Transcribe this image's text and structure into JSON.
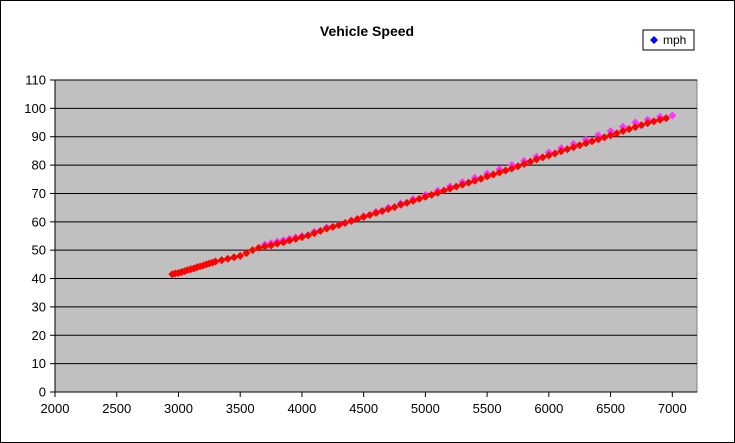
{
  "chart_data": {
    "type": "scatter",
    "title": "Vehicle Speed",
    "xlabel": "",
    "ylabel": "",
    "xlim": [
      2000,
      7200
    ],
    "ylim": [
      0,
      110
    ],
    "x_ticks": [
      2000,
      2500,
      3000,
      3500,
      4000,
      4500,
      5000,
      5500,
      6000,
      6500,
      7000
    ],
    "y_ticks": [
      0,
      10,
      20,
      30,
      40,
      50,
      60,
      70,
      80,
      90,
      100,
      110
    ],
    "grid": "horizontal",
    "plot_background": "#C0C0C0",
    "legend_position": "top-right",
    "series": [
      {
        "name": "mph",
        "legend_color": "#0000FF",
        "x": [
          3700,
          3750,
          3800,
          3850,
          3900,
          3950,
          4000,
          4100,
          4200,
          4300,
          4400,
          4500,
          4600,
          4700,
          4800,
          4900,
          5000,
          5100,
          5200,
          5300,
          5400,
          5500,
          5600,
          5700,
          5800,
          5900,
          6000,
          6100,
          6200,
          6300,
          6400,
          6500,
          6600,
          6700,
          6800,
          6900,
          7000
        ],
        "y": [
          52,
          52.5,
          53,
          53.5,
          54,
          54.5,
          55,
          56.5,
          58,
          59,
          60.5,
          62,
          63.5,
          65,
          66.5,
          68,
          69.5,
          71,
          72.5,
          74,
          75.5,
          77,
          78.5,
          80,
          81.5,
          83,
          84.5,
          86,
          87.5,
          89,
          90.5,
          92,
          93.5,
          95,
          96,
          97,
          97.5
        ],
        "color": "#FF33FF"
      },
      {
        "name": "",
        "x": [
          2950,
          2975,
          3000,
          3025,
          3050,
          3075,
          3100,
          3125,
          3150,
          3175,
          3200,
          3225,
          3250,
          3275,
          3300,
          3350,
          3400,
          3450,
          3500,
          3550,
          3600,
          3650,
          3700,
          3750,
          3800,
          3850,
          3900,
          3950,
          4000,
          4050,
          4100,
          4150,
          4200,
          4250,
          4300,
          4350,
          4400,
          4450,
          4500,
          4550,
          4600,
          4650,
          4700,
          4750,
          4800,
          4850,
          4900,
          4950,
          5000,
          5050,
          5100,
          5150,
          5200,
          5250,
          5300,
          5350,
          5400,
          5450,
          5500,
          5550,
          5600,
          5650,
          5700,
          5750,
          5800,
          5850,
          5900,
          5950,
          6000,
          6050,
          6100,
          6150,
          6200,
          6250,
          6300,
          6350,
          6400,
          6450,
          6500,
          6550,
          6600,
          6650,
          6700,
          6750,
          6800,
          6850,
          6900,
          6950
        ],
        "y": [
          41.5,
          41.8,
          42,
          42.3,
          42.6,
          43,
          43.3,
          43.6,
          44,
          44.3,
          44.6,
          45,
          45.3,
          45.6,
          46,
          46.5,
          47,
          47.5,
          48,
          49,
          50,
          50.8,
          51.3,
          51.7,
          52.3,
          52.8,
          53.4,
          54,
          54.6,
          55.2,
          56,
          56.8,
          57.6,
          58.2,
          58.9,
          59.6,
          60.3,
          61,
          61.7,
          62.4,
          63.1,
          63.8,
          64.5,
          65.2,
          66,
          66.7,
          67.4,
          68.1,
          68.8,
          69.5,
          70.2,
          71,
          71.7,
          72.4,
          73.1,
          73.8,
          74.5,
          75.2,
          76,
          76.7,
          77.4,
          78.1,
          78.8,
          79.6,
          80.4,
          81.2,
          82,
          82.7,
          83.4,
          84.1,
          84.9,
          85.6,
          86.3,
          87,
          87.7,
          88.4,
          89.1,
          89.8,
          90.5,
          91.2,
          92,
          92.7,
          93.4,
          94.1,
          94.8,
          95.4,
          96,
          96.5
        ],
        "color": "#FF0000"
      }
    ]
  }
}
